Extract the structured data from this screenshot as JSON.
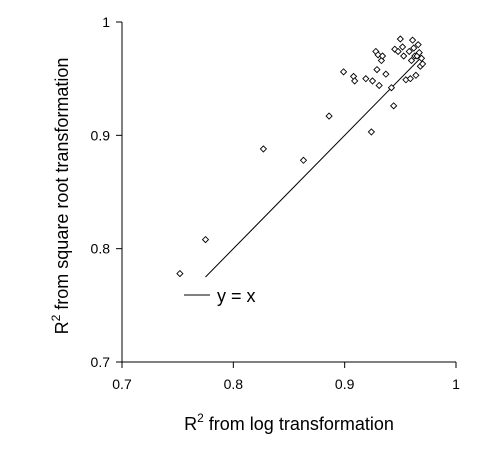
{
  "chart_data": {
    "type": "scatter",
    "title": "",
    "xlabel": {
      "base": "R",
      "sup": "2",
      "rest": " from log transformation"
    },
    "ylabel": {
      "base": "R",
      "sup": "2",
      "rest": " from square root transformation"
    },
    "xlim": [
      0.7,
      1.0
    ],
    "ylim": [
      0.7,
      1.0
    ],
    "x_ticks": [
      0.7,
      0.8,
      0.9,
      1.0
    ],
    "y_ticks": [
      0.7,
      0.8,
      0.9,
      1.0
    ],
    "x_tick_labels": [
      "0.7",
      "0.8",
      "0.9",
      "1"
    ],
    "y_tick_labels": [
      "0.7",
      "0.8",
      "0.9",
      "1"
    ],
    "grid": false,
    "legend": {
      "label": "y = x",
      "position": "bottom-left"
    },
    "reference_line": {
      "label": "y = x",
      "x": [
        0.775,
        0.97
      ],
      "y": [
        0.775,
        0.97
      ]
    },
    "marker": "open-diamond",
    "x": [
      0.752,
      0.775,
      0.827,
      0.863,
      0.886,
      0.899,
      0.908,
      0.909,
      0.919,
      0.924,
      0.925,
      0.928,
      0.929,
      0.93,
      0.931,
      0.933,
      0.934,
      0.937,
      0.942,
      0.944,
      0.945,
      0.948,
      0.95,
      0.952,
      0.953,
      0.955,
      0.958,
      0.959,
      0.96,
      0.961,
      0.962,
      0.963,
      0.964,
      0.965,
      0.966,
      0.967,
      0.968,
      0.969,
      0.97
    ],
    "y": [
      0.778,
      0.808,
      0.888,
      0.878,
      0.917,
      0.956,
      0.952,
      0.948,
      0.95,
      0.903,
      0.948,
      0.974,
      0.958,
      0.971,
      0.944,
      0.966,
      0.97,
      0.954,
      0.942,
      0.926,
      0.976,
      0.974,
      0.985,
      0.978,
      0.97,
      0.949,
      0.974,
      0.95,
      0.966,
      0.984,
      0.977,
      0.97,
      0.953,
      0.97,
      0.98,
      0.973,
      0.961,
      0.968,
      0.963
    ]
  }
}
